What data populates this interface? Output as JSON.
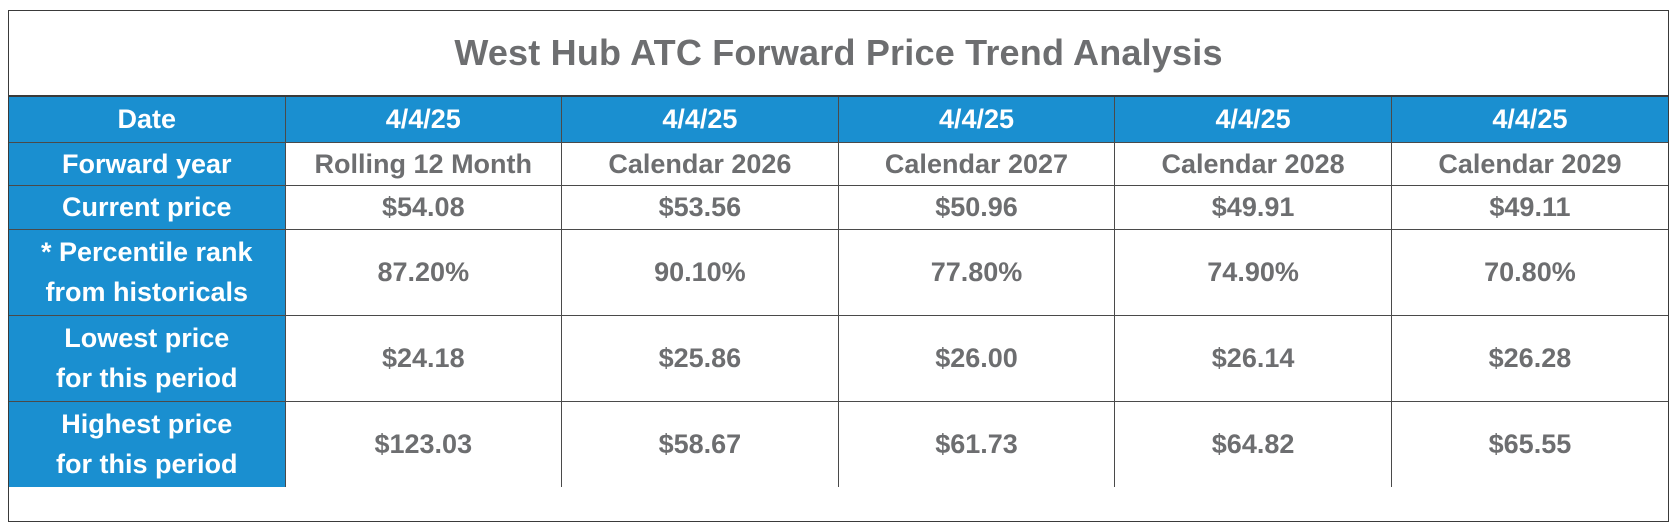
{
  "title": "West Hub ATC Forward Price Trend Analysis",
  "row_labels": {
    "date": "Date",
    "forward_year": "Forward year",
    "current_price": "Current price",
    "percentile_line1": "* Percentile rank",
    "percentile_line2": "from historicals",
    "lowest_line1": "Lowest price",
    "lowest_line2": "for this period",
    "highest_line1": "Highest price",
    "highest_line2": "for this period"
  },
  "columns": [
    {
      "date": "4/4/25",
      "forward_year": "Rolling 12 Month",
      "current_price": "$54.08",
      "percentile": "87.20%",
      "lowest": "$24.18",
      "highest": "$123.03"
    },
    {
      "date": "4/4/25",
      "forward_year": "Calendar 2026",
      "current_price": "$53.56",
      "percentile": "90.10%",
      "lowest": "$25.86",
      "highest": "$58.67"
    },
    {
      "date": "4/4/25",
      "forward_year": "Calendar 2027",
      "current_price": "$50.96",
      "percentile": "77.80%",
      "lowest": "$26.00",
      "highest": "$61.73"
    },
    {
      "date": "4/4/25",
      "forward_year": "Calendar 2028",
      "current_price": "$49.91",
      "percentile": "74.90%",
      "lowest": "$26.14",
      "highest": "$64.82"
    },
    {
      "date": "4/4/25",
      "forward_year": "Calendar 2029",
      "current_price": "$49.11",
      "percentile": "70.80%",
      "lowest": "$26.28",
      "highest": "$65.55"
    }
  ],
  "colors": {
    "header_blue": "#1a8fd0",
    "text_gray": "#6d6e70",
    "header_text": "#ffffff"
  }
}
